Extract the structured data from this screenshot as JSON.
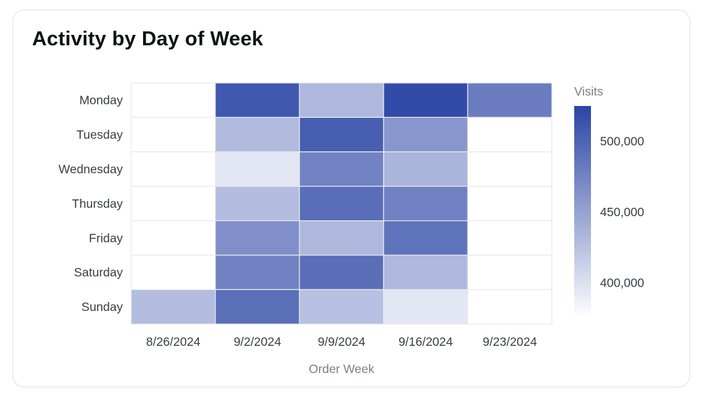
{
  "card": {
    "title": "Activity by Day of Week"
  },
  "chart_data": {
    "type": "heatmap",
    "title": "Activity by Day of Week",
    "xlabel": "Order Week",
    "ylabel": "",
    "x": [
      "8/26/2024",
      "9/2/2024",
      "9/9/2024",
      "9/16/2024",
      "9/23/2024"
    ],
    "y": [
      "Monday",
      "Tuesday",
      "Wednesday",
      "Thursday",
      "Friday",
      "Saturday",
      "Sunday"
    ],
    "values": [
      [
        null,
        510000,
        432000,
        520000,
        480000
      ],
      [
        null,
        430000,
        505000,
        460000,
        null
      ],
      [
        null,
        395000,
        475000,
        435000,
        null
      ],
      [
        null,
        428000,
        492000,
        477000,
        null
      ],
      [
        null,
        465000,
        432000,
        488000,
        null
      ],
      [
        null,
        476000,
        492000,
        432000,
        null
      ],
      [
        428000,
        490000,
        426000,
        395000,
        null
      ]
    ],
    "legend": {
      "title": "Visits",
      "placement": "right",
      "ticks": [
        500000,
        450000,
        400000
      ],
      "tick_labels": [
        "500,000",
        "450,000",
        "400,000"
      ],
      "min": 375000,
      "max": 525000
    },
    "colors": {
      "low": "#ffffff",
      "high": "#2b45a5",
      "grid": "#e9eaee"
    }
  }
}
